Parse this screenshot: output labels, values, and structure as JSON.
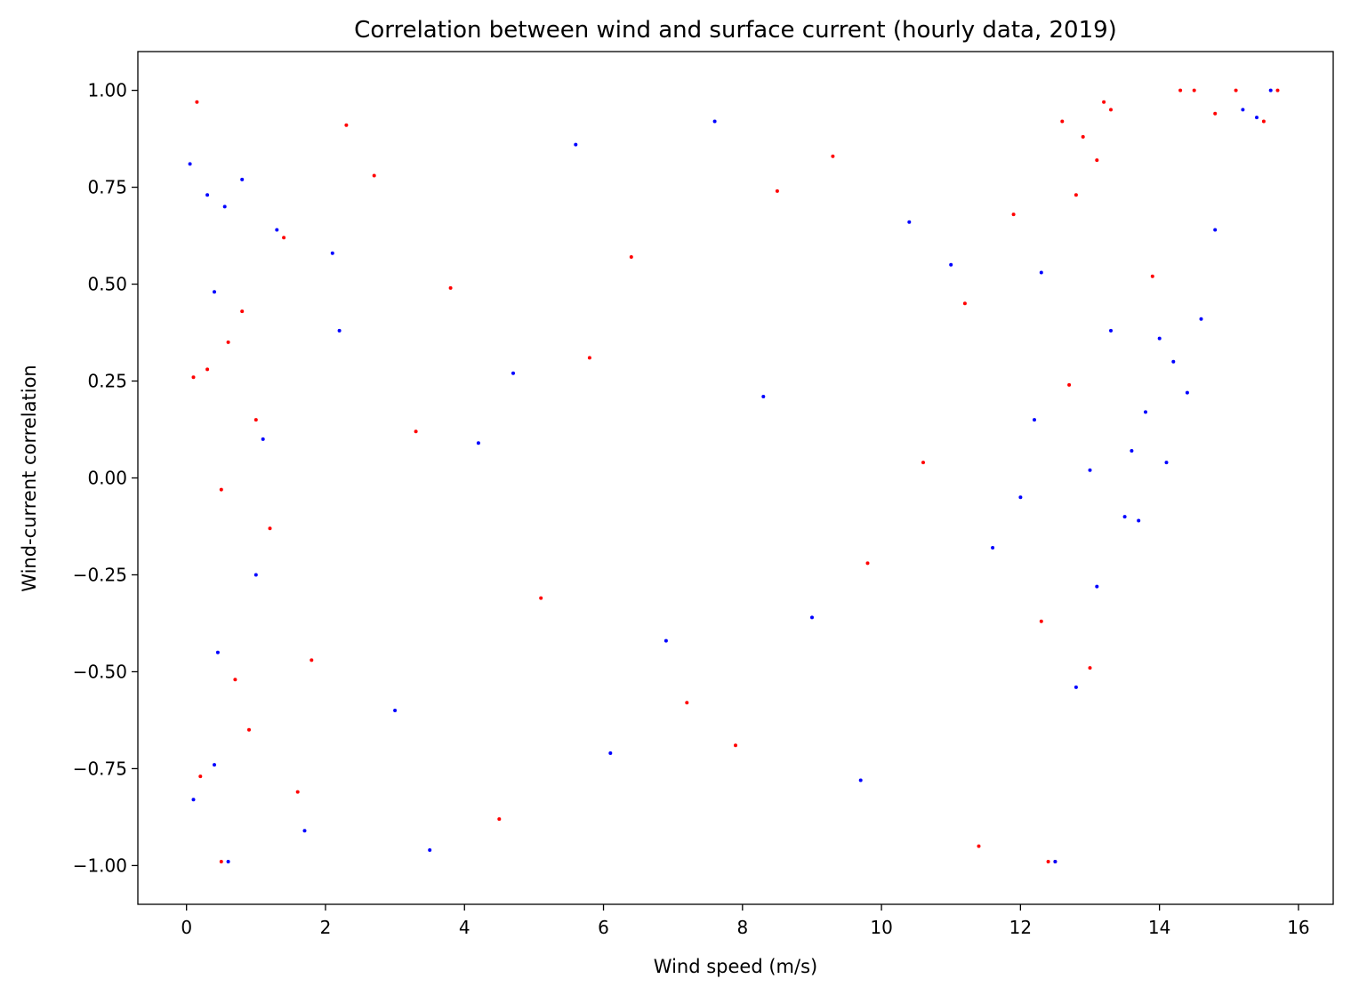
{
  "chart_data": {
    "type": "scatter",
    "title": "Correlation between wind and surface current (hourly data, 2019)",
    "xlabel": "Wind speed (m/s)",
    "ylabel": "Wind-current correlation",
    "xlim": [
      -0.7,
      16.5
    ],
    "ylim": [
      -1.1,
      1.1
    ],
    "xticks": [
      0,
      2,
      4,
      6,
      8,
      10,
      12,
      14,
      16
    ],
    "yticks": [
      1.0,
      0.75,
      0.5,
      0.25,
      0.0,
      -0.25,
      -0.5,
      -0.75,
      -1.0
    ],
    "xtick_labels": [
      "0",
      "2",
      "4",
      "6",
      "8",
      "10",
      "12",
      "14",
      "16"
    ],
    "ytick_labels": [
      "1.00",
      "0.75",
      "0.50",
      "0.25",
      "0.00",
      "−0.25",
      "−0.50",
      "−0.75",
      "−1.00"
    ],
    "grid": false,
    "series": [
      {
        "color": "#ff0000",
        "x": [
          0.1,
          0.15,
          0.2,
          0.3,
          0.5,
          0.5,
          0.6,
          0.7,
          0.9,
          1.0,
          1.2,
          1.4,
          1.8,
          2.3,
          3.3,
          4.5,
          5.8,
          7.2,
          8.5,
          9.8,
          11.2,
          12.4,
          12.5,
          13.0,
          13.3,
          13.9,
          14.3,
          14.5,
          14.8,
          15.1,
          15.5,
          15.7,
          12.7,
          12.3,
          11.9,
          11.4,
          10.6,
          9.3,
          7.9,
          6.4,
          5.1,
          3.8,
          2.7,
          1.6,
          0.8,
          12.8,
          13.1,
          12.9,
          13.2,
          12.6
        ],
        "y": [
          0.26,
          0.97,
          -0.77,
          0.28,
          -0.03,
          -0.99,
          0.35,
          -0.52,
          -0.65,
          0.15,
          -0.13,
          0.62,
          -0.47,
          0.91,
          0.12,
          -0.88,
          0.31,
          -0.58,
          0.74,
          -0.22,
          0.45,
          -0.99,
          -0.99,
          -0.49,
          0.95,
          0.52,
          1.0,
          1.0,
          0.94,
          1.0,
          0.92,
          1.0,
          0.24,
          -0.37,
          0.68,
          -0.95,
          0.04,
          0.83,
          -0.69,
          0.57,
          -0.31,
          0.49,
          0.78,
          -0.81,
          0.43,
          0.73,
          0.82,
          0.88,
          0.97,
          0.92
        ]
      },
      {
        "color": "#0000ff",
        "x": [
          0.05,
          0.1,
          0.3,
          0.4,
          0.4,
          0.45,
          0.55,
          0.6,
          0.8,
          1.0,
          1.3,
          1.7,
          2.2,
          3.0,
          4.2,
          5.6,
          6.9,
          8.3,
          9.7,
          11.0,
          12.0,
          12.5,
          12.8,
          13.1,
          13.5,
          13.6,
          13.8,
          14.1,
          14.2,
          14.4,
          14.6,
          14.8,
          15.2,
          15.6,
          13.3,
          13.0,
          12.3,
          11.6,
          10.4,
          9.0,
          7.6,
          6.1,
          4.7,
          3.5,
          2.1,
          1.1,
          12.2,
          13.7,
          14.0,
          15.4
        ],
        "y": [
          0.81,
          -0.83,
          0.73,
          0.48,
          -0.74,
          -0.45,
          0.7,
          -0.99,
          0.77,
          -0.25,
          0.64,
          -0.91,
          0.38,
          -0.6,
          0.09,
          0.86,
          -0.42,
          0.21,
          -0.78,
          0.55,
          -0.05,
          -0.99,
          -0.54,
          -0.28,
          -0.1,
          0.07,
          0.17,
          0.04,
          0.3,
          0.22,
          0.41,
          0.64,
          0.95,
          1.0,
          0.38,
          0.02,
          0.53,
          -0.18,
          0.66,
          -0.36,
          0.92,
          -0.71,
          0.27,
          -0.96,
          0.58,
          0.1,
          0.15,
          -0.11,
          0.36,
          0.93
        ]
      }
    ]
  }
}
